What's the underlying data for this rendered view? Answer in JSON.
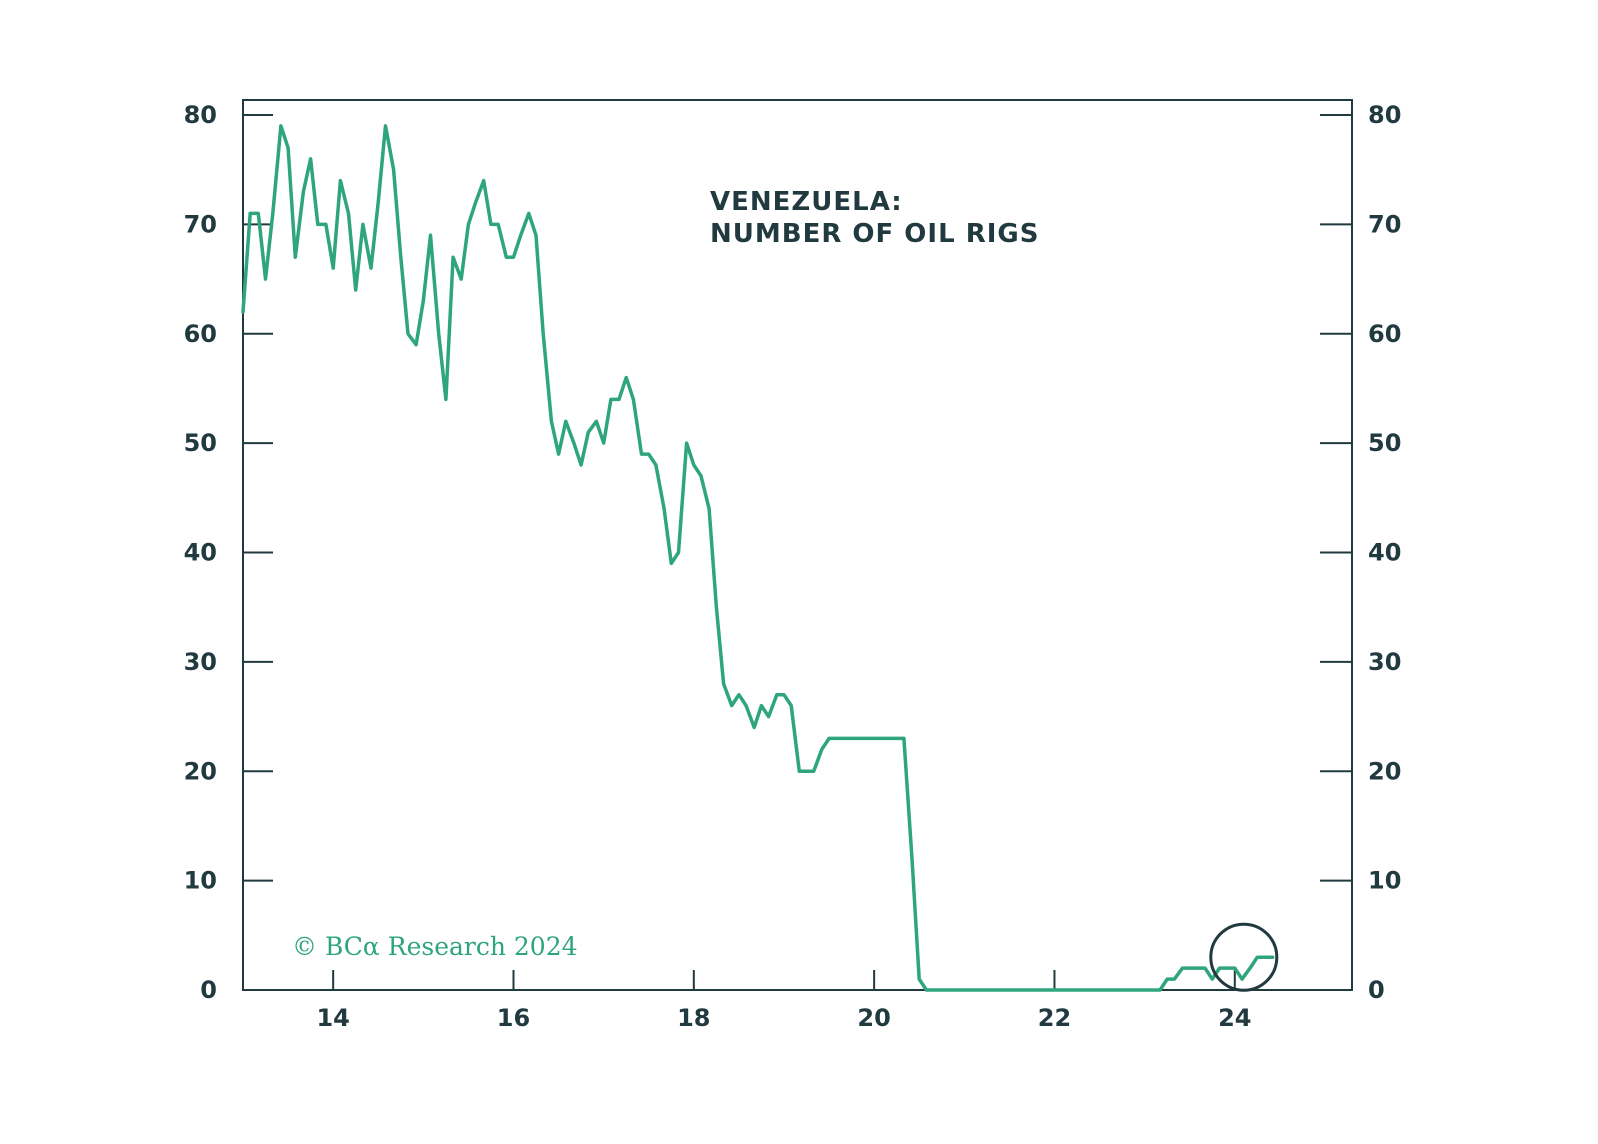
{
  "colors": {
    "line": "#2ea57c",
    "axis": "#213a3f",
    "text": "#213a3f",
    "copyright": "#2ea57c",
    "background": "#ffffff"
  },
  "chart_data": {
    "type": "line",
    "title_lines": [
      "VENEZUELA:",
      "NUMBER OF OIL RIGS"
    ],
    "xlabel": "",
    "ylabel": "",
    "xlim": [
      2013,
      2025.3
    ],
    "ylim": [
      0,
      80
    ],
    "x_ticks": [
      2014,
      2016,
      2018,
      2020,
      2022,
      2024
    ],
    "x_tick_labels": [
      "14",
      "16",
      "18",
      "20",
      "22",
      "24"
    ],
    "y_ticks": [
      0,
      10,
      20,
      30,
      40,
      50,
      60,
      70,
      80
    ],
    "y_tick_labels": [
      "0",
      "10",
      "20",
      "30",
      "40",
      "50",
      "60",
      "70",
      "80"
    ],
    "right_axis_mirror": true,
    "grid": false,
    "series": [
      {
        "x": [
          2013.0,
          2013.08,
          2013.17,
          2013.25,
          2013.33,
          2013.42,
          2013.5,
          2013.58,
          2013.67,
          2013.75,
          2013.83,
          2013.92,
          2014.0,
          2014.08,
          2014.17,
          2014.25,
          2014.33,
          2014.42,
          2014.5,
          2014.58,
          2014.67,
          2014.75,
          2014.83,
          2014.92,
          2015.0,
          2015.08,
          2015.17,
          2015.25,
          2015.33,
          2015.42,
          2015.5,
          2015.58,
          2015.67,
          2015.75,
          2015.83,
          2015.92,
          2016.0,
          2016.08,
          2016.17,
          2016.25,
          2016.33,
          2016.42,
          2016.5,
          2016.58,
          2016.67,
          2016.75,
          2016.83,
          2016.92,
          2017.0,
          2017.08,
          2017.17,
          2017.25,
          2017.33,
          2017.42,
          2017.5,
          2017.58,
          2017.67,
          2017.75,
          2017.83,
          2017.92,
          2018.0,
          2018.08,
          2018.17,
          2018.25,
          2018.33,
          2018.42,
          2018.5,
          2018.58,
          2018.67,
          2018.75,
          2018.83,
          2018.92,
          2019.0,
          2019.08,
          2019.17,
          2019.25,
          2019.33,
          2019.42,
          2019.5,
          2019.58,
          2019.67,
          2019.75,
          2019.83,
          2019.92,
          2020.0,
          2020.08,
          2020.17,
          2020.25,
          2020.33,
          2020.42,
          2020.5,
          2020.58,
          2020.67,
          2020.75,
          2020.83,
          2020.92,
          2021.0,
          2021.5,
          2022.0,
          2022.5,
          2023.0,
          2023.17,
          2023.25,
          2023.33,
          2023.42,
          2023.5,
          2023.58,
          2023.67,
          2023.75,
          2023.83,
          2023.92,
          2024.0,
          2024.08,
          2024.17,
          2024.25,
          2024.33,
          2024.42
        ],
        "y": [
          62,
          71,
          71,
          65,
          71,
          79,
          77,
          67,
          73,
          76,
          70,
          70,
          66,
          74,
          71,
          64,
          70,
          66,
          72,
          79,
          75,
          67,
          60,
          59,
          63,
          69,
          60,
          54,
          67,
          65,
          70,
          72,
          74,
          70,
          70,
          67,
          67,
          69,
          71,
          69,
          60,
          52,
          49,
          52,
          50,
          48,
          51,
          52,
          50,
          54,
          54,
          56,
          54,
          49,
          49,
          48,
          44,
          39,
          40,
          50,
          48,
          47,
          44,
          35,
          28,
          26,
          27,
          26,
          24,
          26,
          25,
          27,
          27,
          26,
          20,
          20,
          20,
          22,
          23,
          23,
          23,
          23,
          23,
          23,
          23,
          23,
          23,
          23,
          23,
          12,
          1,
          0,
          0,
          0,
          0,
          0,
          0,
          0,
          0,
          0,
          0,
          0,
          1,
          1,
          2,
          2,
          2,
          2,
          1,
          2,
          2,
          2,
          1,
          2,
          3,
          3,
          3
        ]
      }
    ],
    "annotation": {
      "type": "circle",
      "x": 2024.1,
      "y": 3
    },
    "source": "© BCα Research 2024"
  }
}
